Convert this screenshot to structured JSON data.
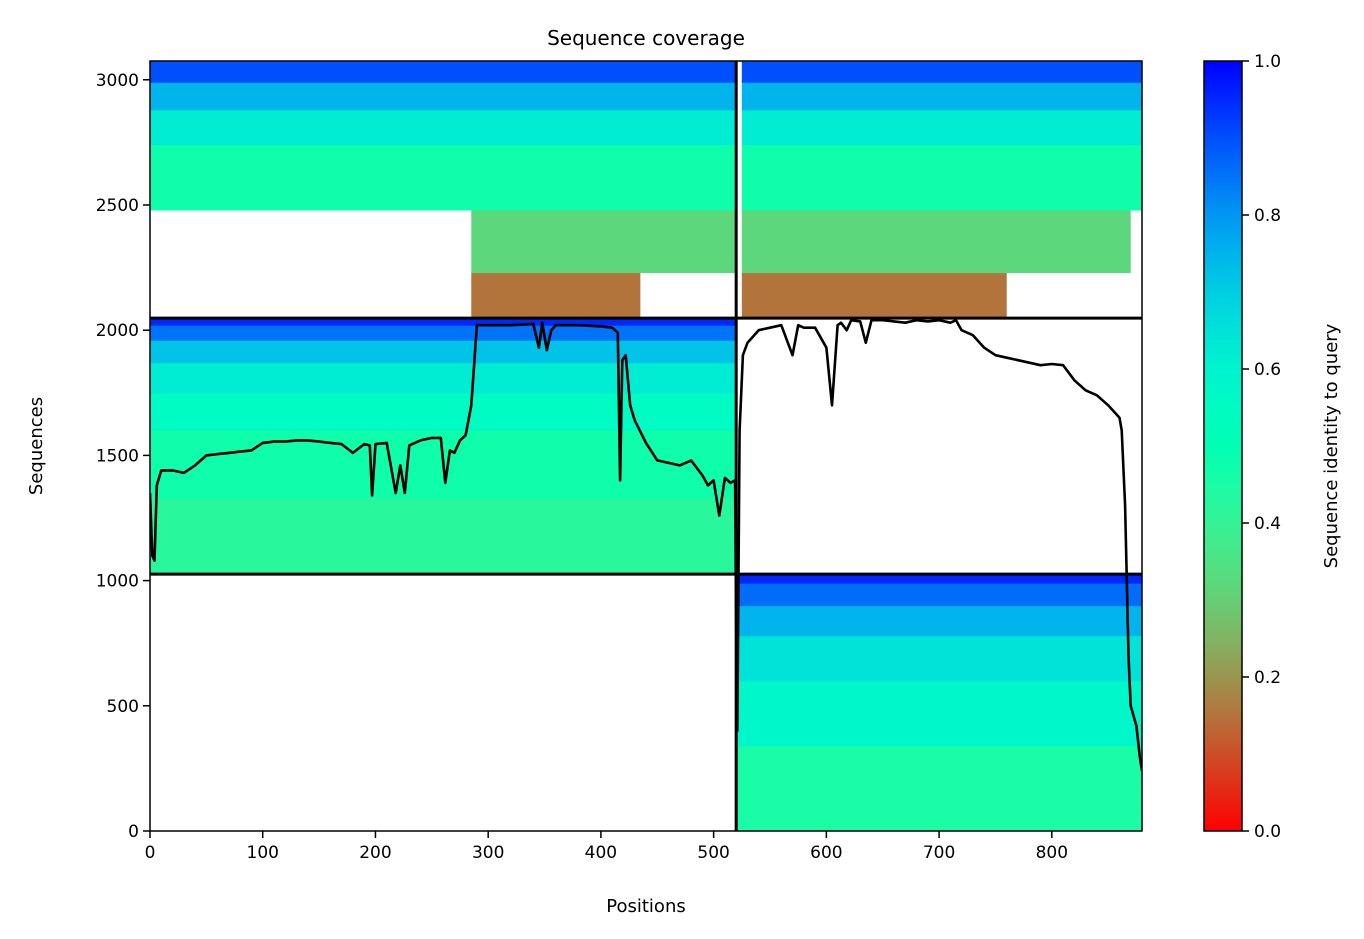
{
  "chart_data": {
    "type": "heatmap",
    "title": "Sequence coverage",
    "xlabel": "Positions",
    "ylabel": "Sequences",
    "xlim": [
      0,
      880
    ],
    "ylim": [
      0,
      3075
    ],
    "xticks": [
      0,
      100,
      200,
      300,
      400,
      500,
      600,
      700,
      800
    ],
    "yticks": [
      0,
      500,
      1000,
      1500,
      2000,
      2500,
      3000
    ],
    "grid": false,
    "colorbar": {
      "label": "Sequence identity to query",
      "colormap": "rainbow_r",
      "range": [
        0,
        1
      ],
      "ticks": [
        "0.0",
        "0.2",
        "0.4",
        "0.6",
        "0.8",
        "1.0"
      ],
      "tick_values": [
        0,
        0.2,
        0.4,
        0.6,
        0.8,
        1.0
      ]
    },
    "chain_boundaries": {
      "x": [
        520
      ],
      "y": [
        1026,
        2048
      ]
    },
    "blocks": [
      {
        "name": "chain-1-msa",
        "x_range": [
          0,
          520
        ],
        "y_range": [
          1026,
          2048
        ],
        "identity_bands": [
          {
            "y0": 1026,
            "y1": 1330,
            "identity": 0.42
          },
          {
            "y0": 1330,
            "y1": 1600,
            "identity": 0.47
          },
          {
            "y0": 1600,
            "y1": 1750,
            "identity": 0.55
          },
          {
            "y0": 1750,
            "y1": 1870,
            "identity": 0.62
          },
          {
            "y0": 1870,
            "y1": 1960,
            "identity": 0.72
          },
          {
            "y0": 1960,
            "y1": 2020,
            "identity": 0.85
          },
          {
            "y0": 2020,
            "y1": 2048,
            "identity": 0.95
          }
        ]
      },
      {
        "name": "chain-2-msa",
        "x_range": [
          520,
          880
        ],
        "y_range": [
          0,
          1026
        ],
        "identity_bands": [
          {
            "y0": 0,
            "y1": 340,
            "identity": 0.45
          },
          {
            "y0": 340,
            "y1": 600,
            "identity": 0.58
          },
          {
            "y0": 600,
            "y1": 780,
            "identity": 0.65
          },
          {
            "y0": 780,
            "y1": 900,
            "identity": 0.75
          },
          {
            "y0": 900,
            "y1": 990,
            "identity": 0.86
          },
          {
            "y0": 990,
            "y1": 1026,
            "identity": 0.95
          }
        ]
      },
      {
        "name": "paired-left",
        "x_range": [
          0,
          520
        ],
        "y_range": [
          2048,
          3075
        ],
        "identity_bands": [
          {
            "y0": 2048,
            "y1": 2230,
            "identity": 0.15,
            "x_from": 285,
            "x_to": 435
          },
          {
            "y0": 2230,
            "y1": 2480,
            "identity": 0.32,
            "x_from": 285,
            "x_to": 520
          },
          {
            "y0": 2480,
            "y1": 2740,
            "identity": 0.47,
            "x_from": 0,
            "x_to": 520
          },
          {
            "y0": 2740,
            "y1": 2880,
            "identity": 0.62,
            "x_from": 0,
            "x_to": 520
          },
          {
            "y0": 2880,
            "y1": 2990,
            "identity": 0.75,
            "x_from": 0,
            "x_to": 520
          },
          {
            "y0": 2990,
            "y1": 3075,
            "identity": 0.9,
            "x_from": 0,
            "x_to": 520
          }
        ]
      },
      {
        "name": "paired-right",
        "x_range": [
          520,
          880
        ],
        "y_range": [
          2048,
          3075
        ],
        "identity_bands": [
          {
            "y0": 2048,
            "y1": 2230,
            "identity": 0.15,
            "x_from": 525,
            "x_to": 760
          },
          {
            "y0": 2230,
            "y1": 2480,
            "identity": 0.32,
            "x_from": 525,
            "x_to": 870
          },
          {
            "y0": 2480,
            "y1": 2740,
            "identity": 0.47,
            "x_from": 525,
            "x_to": 880
          },
          {
            "y0": 2740,
            "y1": 2880,
            "identity": 0.62,
            "x_from": 525,
            "x_to": 880
          },
          {
            "y0": 2880,
            "y1": 2990,
            "identity": 0.75,
            "x_from": 525,
            "x_to": 880
          },
          {
            "y0": 2990,
            "y1": 3075,
            "identity": 0.9,
            "x_from": 525,
            "x_to": 880
          }
        ]
      }
    ],
    "coverage_line": {
      "name": "coverage",
      "color": "#000000",
      "x": [
        0,
        2,
        4,
        6,
        10,
        20,
        30,
        40,
        50,
        60,
        70,
        80,
        90,
        100,
        110,
        120,
        130,
        140,
        150,
        160,
        170,
        180,
        190,
        195,
        197,
        200,
        210,
        218,
        222,
        226,
        230,
        240,
        250,
        258,
        262,
        266,
        270,
        275,
        280,
        285,
        290,
        300,
        320,
        340,
        345,
        348,
        352,
        356,
        360,
        380,
        400,
        410,
        415,
        417,
        419,
        422,
        426,
        430,
        440,
        450,
        460,
        470,
        480,
        490,
        495,
        500,
        505,
        510,
        515,
        519,
        520,
        521,
        523,
        526,
        530,
        540,
        550,
        560,
        570,
        575,
        580,
        590,
        600,
        605,
        610,
        613,
        618,
        622,
        630,
        635,
        640,
        650,
        660,
        670,
        680,
        690,
        700,
        710,
        715,
        720,
        730,
        740,
        750,
        760,
        770,
        780,
        790,
        800,
        810,
        820,
        830,
        840,
        850,
        860,
        862,
        865,
        868,
        870,
        875,
        878,
        880
      ],
      "y": [
        1350,
        1100,
        1080,
        1380,
        1440,
        1440,
        1430,
        1460,
        1500,
        1505,
        1510,
        1515,
        1520,
        1550,
        1555,
        1555,
        1560,
        1560,
        1555,
        1550,
        1545,
        1510,
        1545,
        1540,
        1340,
        1545,
        1550,
        1350,
        1460,
        1350,
        1540,
        1560,
        1570,
        1570,
        1390,
        1520,
        1510,
        1560,
        1580,
        1700,
        2020,
        2020,
        2020,
        2025,
        1930,
        2030,
        1920,
        2000,
        2020,
        2020,
        2015,
        2010,
        1990,
        1400,
        1880,
        1900,
        1700,
        1640,
        1550,
        1480,
        1470,
        1460,
        1480,
        1420,
        1380,
        1400,
        1260,
        1410,
        1390,
        1400,
        800,
        400,
        1600,
        1900,
        1950,
        2000,
        2010,
        2020,
        1900,
        2020,
        2010,
        2010,
        1930,
        1700,
        2020,
        2030,
        2000,
        2040,
        2035,
        1950,
        2040,
        2040,
        2035,
        2030,
        2040,
        2035,
        2040,
        2030,
        2040,
        2000,
        1980,
        1930,
        1900,
        1890,
        1880,
        1870,
        1860,
        1865,
        1860,
        1800,
        1760,
        1740,
        1700,
        1650,
        1600,
        1300,
        700,
        500,
        420,
        300,
        240
      ]
    }
  }
}
